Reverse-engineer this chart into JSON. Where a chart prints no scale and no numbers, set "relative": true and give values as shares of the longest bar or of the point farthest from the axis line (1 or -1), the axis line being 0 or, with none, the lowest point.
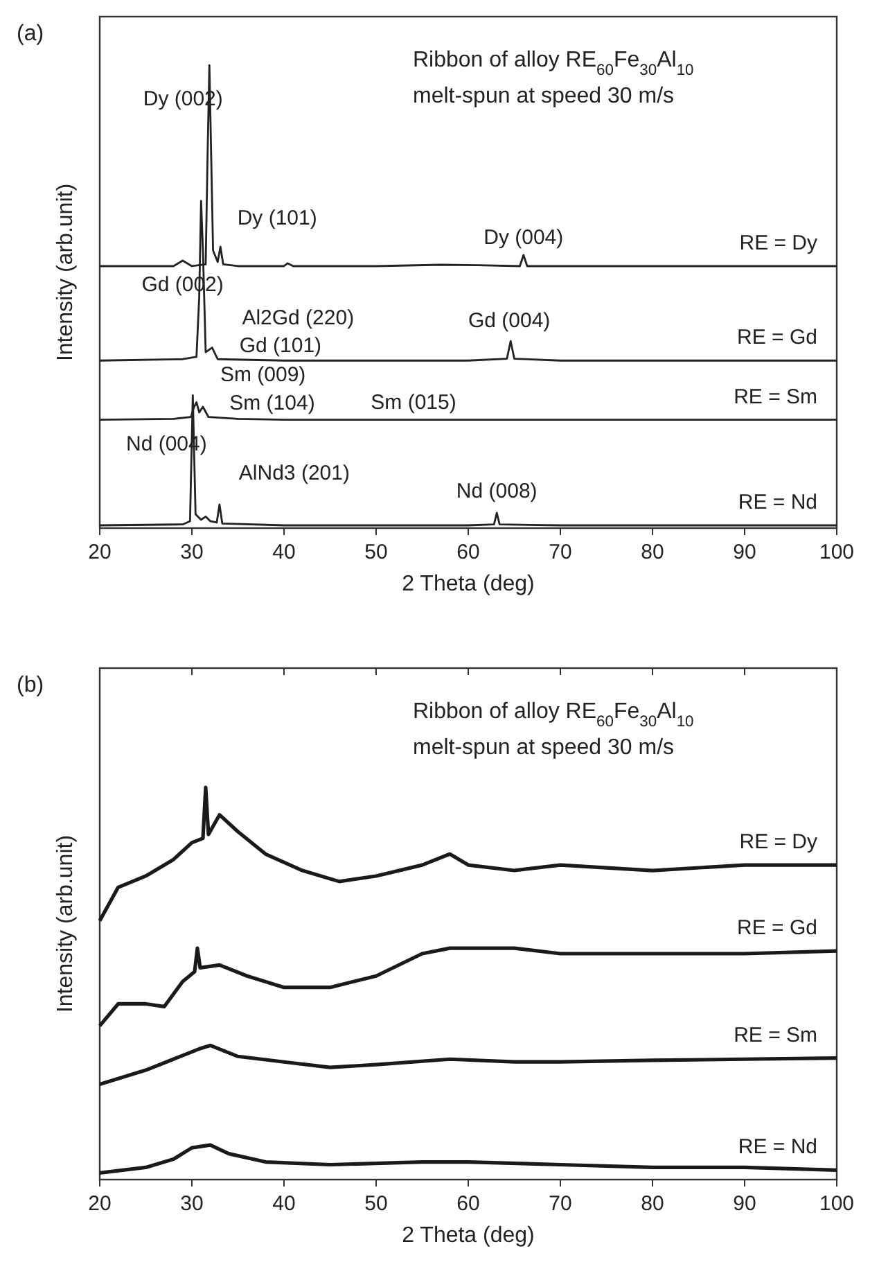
{
  "chart_data": [
    {
      "type": "line",
      "title": "(a)",
      "subtitle": "Ribbon of alloy RE$_{60}$Fe$_{30}$Al$_{10}$\nmelt-spun at speed 30 m/s",
      "xlabel": "2 Theta (deg)",
      "ylabel": "Intensity (arb.unit)",
      "relative": true,
      "xlim": [
        20,
        100
      ],
      "xticks": [
        20,
        30,
        40,
        50,
        60,
        70,
        80,
        90,
        100
      ],
      "tick_labels": "x",
      "legend": false,
      "series": [
        {
          "name": "RE = Dy",
          "color": "#222222",
          "x": [
            20,
            28,
            29,
            30,
            31.5,
            31.7,
            31.9,
            32.3,
            32.8,
            33.1,
            33.4,
            35,
            40,
            40.4,
            41,
            50,
            57,
            61,
            65.6,
            66,
            66.4,
            70,
            80,
            90,
            100
          ],
          "values": [
            0.566,
            0.566,
            0.578,
            0.566,
            0.57,
            0.8,
            1,
            0.6,
            0.575,
            0.608,
            0.57,
            0.566,
            0.566,
            0.572,
            0.566,
            0.566,
            0.569,
            0.568,
            0.566,
            0.59,
            0.566,
            0.566,
            0.566,
            0.566,
            0.566
          ]
        },
        {
          "name": "RE = Gd",
          "color": "#222222",
          "x": [
            20,
            29,
            30.5,
            30.8,
            31,
            31.2,
            31.5,
            32.2,
            32.8,
            40,
            50,
            60,
            64.2,
            64.6,
            65,
            70,
            80,
            90,
            100
          ],
          "values": [
            0.362,
            0.365,
            0.37,
            0.5,
            0.707,
            0.6,
            0.38,
            0.39,
            0.365,
            0.362,
            0.362,
            0.362,
            0.366,
            0.404,
            0.366,
            0.362,
            0.362,
            0.362,
            0.362
          ]
        },
        {
          "name": "RE = Sm",
          "color": "#222222",
          "x": [
            20,
            28,
            29.9,
            30.2,
            30.5,
            30.8,
            31.2,
            31.8,
            35,
            40,
            50,
            60,
            70,
            80,
            90,
            100
          ],
          "values": [
            0.234,
            0.236,
            0.24,
            0.26,
            0.272,
            0.25,
            0.262,
            0.24,
            0.236,
            0.234,
            0.234,
            0.234,
            0.234,
            0.234,
            0.234,
            0.234
          ]
        },
        {
          "name": "RE = Nd",
          "color": "#222222",
          "x": [
            20,
            29,
            29.8,
            30.1,
            30.4,
            31,
            31.5,
            32,
            32.7,
            33,
            33.3,
            40,
            50,
            60,
            62.8,
            63.1,
            63.4,
            70,
            80,
            90,
            100
          ],
          "values": [
            0.006,
            0.008,
            0.015,
            0.287,
            0.03,
            0.018,
            0.025,
            0.015,
            0.012,
            0.051,
            0.01,
            0.006,
            0.006,
            0.006,
            0.008,
            0.033,
            0.008,
            0.006,
            0.006,
            0.006,
            0.006
          ]
        }
      ],
      "annotations": [
        {
          "text": "Dy (002)",
          "x": 31.9,
          "y": 1
        },
        {
          "text": "Dy (101)",
          "x": 33.1,
          "y": 0.608
        },
        {
          "text": "Dy (004)",
          "x": 66,
          "y": 0.59
        },
        {
          "text": "Gd (002)",
          "x": 30.8,
          "y": 0.5
        },
        {
          "text": "Al2Gd (220)",
          "x": 32.2,
          "y": 0.39
        },
        {
          "text": "Gd (101)",
          "x": 31.5,
          "y": 0.38
        },
        {
          "text": "Gd (004)",
          "x": 64.6,
          "y": 0.404
        },
        {
          "text": "Sm (009)",
          "x": 30.5,
          "y": 0.272
        },
        {
          "text": "Sm (104)",
          "x": 31.2,
          "y": 0.262
        },
        {
          "text": "Sm (015)",
          "x": 50,
          "y": 0.234
        },
        {
          "text": "Nd (004)",
          "x": 30.1,
          "y": 0.287
        },
        {
          "text": "AlNd3 (201)",
          "x": 33,
          "y": 0.051
        },
        {
          "text": "Nd (008)",
          "x": 63.1,
          "y": 0.033
        }
      ]
    },
    {
      "type": "line",
      "title": "(b)",
      "subtitle": "Ribbon of alloy RE$_{60}$Fe$_{30}$Al$_{10}$\nmelt-spun at speed 30 m/s",
      "xlabel": "2 Theta (deg)",
      "ylabel": "Intensity (arb.unit)",
      "relative": true,
      "xlim": [
        20,
        100
      ],
      "xticks": [
        20,
        30,
        40,
        50,
        60,
        70,
        80,
        90,
        100
      ],
      "tick_labels": "x",
      "legend": false,
      "series": [
        {
          "name": "RE = Dy",
          "color": "#1a1a1a",
          "x": [
            20,
            22,
            25,
            28,
            30,
            31.2,
            31.5,
            31.8,
            33,
            35,
            38,
            42,
            46,
            50,
            55,
            58,
            60,
            65,
            70,
            80,
            90,
            100
          ],
          "values": [
            0.66,
            0.745,
            0.774,
            0.816,
            0.859,
            0.87,
            1,
            0.88,
            0.93,
            0.887,
            0.83,
            0.788,
            0.76,
            0.774,
            0.802,
            0.83,
            0.802,
            0.788,
            0.802,
            0.788,
            0.802,
            0.802
          ]
        },
        {
          "name": "RE = Gd",
          "color": "#1a1a1a",
          "x": [
            20,
            22,
            25,
            27,
            29,
            30.3,
            30.6,
            30.9,
            33,
            36,
            40,
            45,
            50,
            55,
            58,
            60,
            65,
            70,
            80,
            90,
            100
          ],
          "values": [
            0.392,
            0.448,
            0.448,
            0.441,
            0.505,
            0.53,
            0.59,
            0.54,
            0.547,
            0.519,
            0.49,
            0.49,
            0.519,
            0.576,
            0.59,
            0.59,
            0.59,
            0.576,
            0.576,
            0.576,
            0.583
          ]
        },
        {
          "name": "RE = Sm",
          "color": "#1a1a1a",
          "x": [
            20,
            25,
            28,
            31,
            32,
            35,
            40,
            45,
            50,
            58,
            65,
            70,
            80,
            90,
            100
          ],
          "values": [
            0.243,
            0.279,
            0.307,
            0.335,
            0.342,
            0.314,
            0.3,
            0.286,
            0.293,
            0.307,
            0.3,
            0.3,
            0.304,
            0.307,
            0.31
          ]
        },
        {
          "name": "RE = Nd",
          "color": "#1a1a1a",
          "x": [
            20,
            25,
            28,
            30,
            32,
            34,
            38,
            45,
            55,
            60,
            70,
            80,
            90,
            100
          ],
          "values": [
            0.017,
            0.031,
            0.052,
            0.081,
            0.088,
            0.066,
            0.045,
            0.038,
            0.045,
            0.045,
            0.038,
            0.031,
            0.031,
            0.024
          ]
        }
      ]
    }
  ]
}
